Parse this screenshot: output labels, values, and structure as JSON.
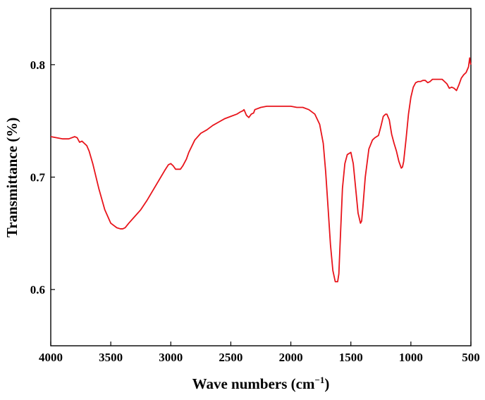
{
  "chart_data": {
    "type": "line",
    "title": "",
    "xlabel": "Wave numbers (cm",
    "xlabel_sup": "−1",
    "xlabel_close": ")",
    "ylabel": "Transmittance (%)",
    "xlim": [
      4000,
      500
    ],
    "ylim": [
      0.55,
      0.85
    ],
    "x_reversed": true,
    "grid": false,
    "legend": "none",
    "x_ticks": [
      4000,
      3500,
      3000,
      2500,
      2000,
      1500,
      1000,
      500
    ],
    "x_tick_labels": [
      "4000",
      "3500",
      "3000",
      "2500",
      "2000",
      "1500",
      "1000",
      "500"
    ],
    "y_ticks": [
      0.6,
      0.7,
      0.8
    ],
    "y_tick_labels": [
      "0.6",
      "0.7",
      "0.8"
    ],
    "series": [
      {
        "color": "#e8141b",
        "x": [
          4000,
          3950,
          3900,
          3850,
          3800,
          3780,
          3760,
          3740,
          3720,
          3700,
          3680,
          3650,
          3600,
          3550,
          3500,
          3450,
          3420,
          3400,
          3380,
          3350,
          3300,
          3250,
          3200,
          3150,
          3100,
          3050,
          3020,
          3000,
          2980,
          2960,
          2940,
          2920,
          2900,
          2870,
          2850,
          2800,
          2750,
          2700,
          2650,
          2600,
          2550,
          2500,
          2450,
          2420,
          2400,
          2390,
          2370,
          2350,
          2330,
          2310,
          2300,
          2250,
          2200,
          2150,
          2100,
          2050,
          2000,
          1950,
          1900,
          1850,
          1800,
          1760,
          1730,
          1710,
          1690,
          1670,
          1650,
          1630,
          1610,
          1600,
          1590,
          1570,
          1550,
          1530,
          1500,
          1480,
          1460,
          1440,
          1420,
          1410,
          1400,
          1380,
          1350,
          1320,
          1300,
          1270,
          1250,
          1230,
          1210,
          1200,
          1180,
          1160,
          1140,
          1120,
          1100,
          1080,
          1070,
          1060,
          1040,
          1020,
          1000,
          980,
          960,
          940,
          920,
          900,
          880,
          860,
          840,
          820,
          800,
          780,
          760,
          740,
          720,
          700,
          680,
          660,
          640,
          620,
          600,
          580,
          560,
          540,
          520,
          510,
          505,
          500
        ],
        "y": [
          0.736,
          0.735,
          0.734,
          0.734,
          0.736,
          0.735,
          0.731,
          0.732,
          0.73,
          0.728,
          0.723,
          0.712,
          0.69,
          0.671,
          0.659,
          0.655,
          0.654,
          0.654,
          0.655,
          0.659,
          0.665,
          0.671,
          0.679,
          0.688,
          0.697,
          0.706,
          0.711,
          0.712,
          0.71,
          0.707,
          0.707,
          0.707,
          0.71,
          0.716,
          0.722,
          0.733,
          0.739,
          0.742,
          0.746,
          0.749,
          0.752,
          0.754,
          0.756,
          0.758,
          0.759,
          0.76,
          0.755,
          0.753,
          0.756,
          0.757,
          0.76,
          0.762,
          0.763,
          0.763,
          0.763,
          0.763,
          0.763,
          0.762,
          0.762,
          0.76,
          0.756,
          0.747,
          0.73,
          0.705,
          0.673,
          0.64,
          0.617,
          0.607,
          0.607,
          0.614,
          0.64,
          0.69,
          0.712,
          0.72,
          0.722,
          0.712,
          0.69,
          0.668,
          0.659,
          0.661,
          0.673,
          0.7,
          0.725,
          0.733,
          0.735,
          0.737,
          0.745,
          0.754,
          0.756,
          0.756,
          0.751,
          0.738,
          0.73,
          0.723,
          0.714,
          0.708,
          0.709,
          0.714,
          0.734,
          0.756,
          0.771,
          0.78,
          0.784,
          0.785,
          0.785,
          0.786,
          0.786,
          0.784,
          0.785,
          0.787,
          0.787,
          0.787,
          0.787,
          0.787,
          0.785,
          0.783,
          0.779,
          0.78,
          0.779,
          0.777,
          0.782,
          0.788,
          0.791,
          0.793,
          0.798,
          0.806,
          0.802,
          0.8
        ]
      }
    ]
  }
}
